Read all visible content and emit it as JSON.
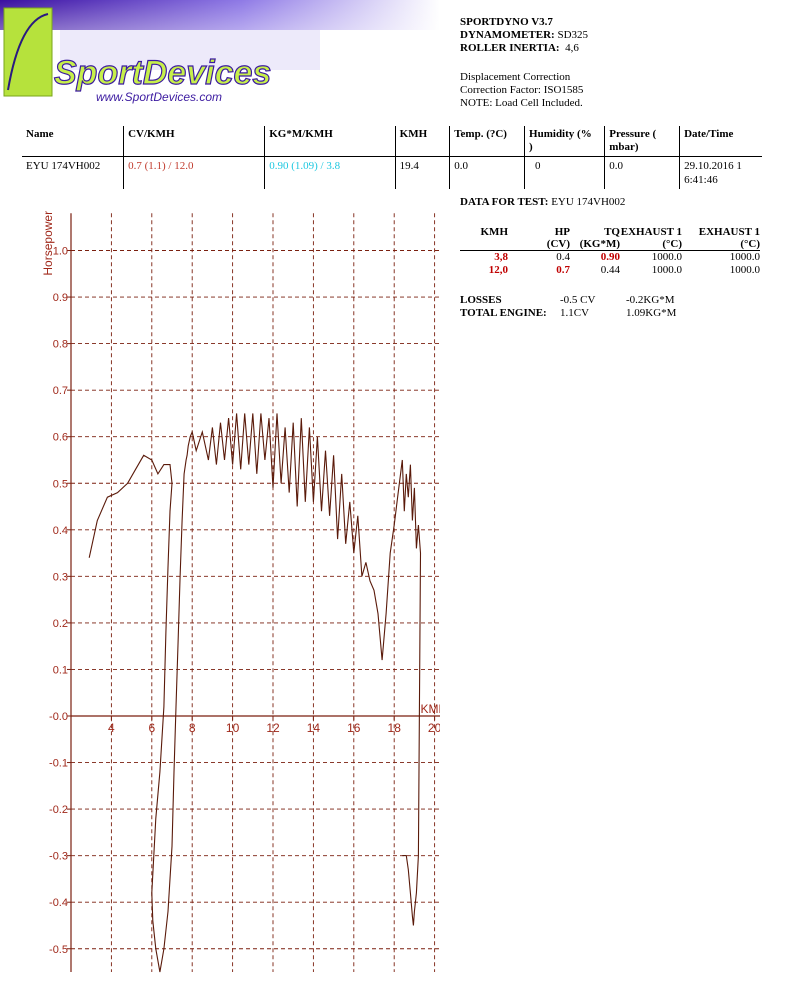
{
  "header": {
    "logo_text": "SportDevices",
    "logo_url": "www.SportDevices.com",
    "lines": [
      {
        "label": "SPORTDYNO V3.7",
        "value": ""
      },
      {
        "label": "DYNAMOMETER:",
        "value": "SD325"
      },
      {
        "label": "ROLLER INERTIA:",
        "value": "4,6"
      }
    ],
    "notes": [
      "Displacement Correction",
      "Correction Factor: ISO1585",
      "NOTE: Load Cell Included."
    ]
  },
  "info_table": {
    "headers": [
      "Name",
      "CV/KMH",
      "KG*M/KMH",
      "KMH",
      "Temp. (?C)",
      "Humidity (%\n)",
      "Pressure (\nmbar)",
      "Date/Time"
    ],
    "row": {
      "name": "EYU  174VH002",
      "cv_kmh": "0.7 (1.1) / 12.0",
      "kgm_kmh": "0.90 (1.09) / 3.8",
      "kmh": "19.4",
      "temp": "0.0",
      "humidity": "0",
      "pressure": "0.0",
      "datetime": "29.10.2016 1\n6:41:46"
    }
  },
  "test": {
    "label": "DATA FOR TEST:",
    "name": "EYU  174VH002",
    "headers_top": [
      "KMH",
      "HP",
      "TQ",
      "EXHAUST 1",
      "EXHAUST 1"
    ],
    "headers_bottom": [
      "",
      "(CV)",
      "(KG*M)",
      "(°C)",
      "(°C)"
    ],
    "rows": [
      {
        "kmh": "3,8",
        "hp": "0.4",
        "tq": "0.90",
        "ex1": "1000.0",
        "ex2": "1000.0"
      },
      {
        "kmh": "12,0",
        "hp": "0.7",
        "tq": "0.44",
        "ex1": "1000.0",
        "ex2": "1000.0"
      }
    ],
    "losses_label": "LOSSES",
    "losses_cv": "-0.5 CV",
    "losses_kgm": "-0.2KG*M",
    "total_label": "TOTAL ENGINE:",
    "total_cv": "1.1CV",
    "total_kgm": "1.09KG*M"
  },
  "colors": {
    "curve": "#5a1a0a",
    "grid": "#7a1f0f",
    "axis_text": "#a0281a",
    "red": "#c0392b",
    "cyan": "#1fc8e0",
    "logo_green": "#b6e23c",
    "logo_purple": "#5a2ab0"
  },
  "chart_data": {
    "type": "line",
    "ylabel": "Horsepower",
    "xlabel": "KMH",
    "xlim": [
      2.0,
      21.0
    ],
    "ylim": [
      -0.55,
      1.08
    ],
    "xticks": [
      4,
      6,
      8,
      10,
      12,
      14,
      16,
      18,
      20
    ],
    "yticks": [
      1.0,
      0.9,
      0.8,
      0.7,
      0.6,
      0.5,
      0.4,
      0.3,
      0.2,
      0.1,
      -0.0,
      -0.1,
      -0.2,
      -0.3,
      -0.4,
      -0.5
    ],
    "ytick_labels": [
      "1.0",
      "0.9",
      "0.8",
      "0.7",
      "0.6",
      "0.5",
      "0.4",
      "0.3",
      "0.2",
      "0.1",
      "-0.0",
      "-0.1",
      "-0.2",
      "-0.3",
      "-0.4",
      "-0.5"
    ],
    "grid": true,
    "series": [
      {
        "x": [
          2.9,
          3.3,
          3.8,
          4.3,
          4.8,
          5.2,
          5.6,
          6.0,
          6.3,
          6.6,
          6.9,
          7.0,
          6.9,
          6.8,
          6.7,
          6.6,
          6.4,
          6.2,
          6.1,
          6.0,
          6.05,
          6.2,
          6.4,
          6.6,
          6.8,
          7.0,
          7.1,
          7.2,
          7.3,
          7.4,
          7.5,
          7.6,
          7.7,
          7.75,
          7.8,
          7.9,
          8.0,
          8.2,
          8.5,
          8.8,
          9.0,
          9.2,
          9.4,
          9.6,
          9.8,
          10.0,
          10.2,
          10.4,
          10.6,
          10.8,
          11.0,
          11.2,
          11.4,
          11.6,
          11.8,
          12.0,
          12.2,
          12.4,
          12.6,
          12.8,
          13.0,
          13.2,
          13.4,
          13.6,
          13.8,
          14.0,
          14.2,
          14.4,
          14.6,
          14.8,
          15.0,
          15.2,
          15.4,
          15.6,
          15.8,
          16.0,
          16.2,
          16.4,
          16.6,
          16.8,
          17.0,
          17.2,
          17.4,
          17.6,
          17.8,
          18.0,
          18.2,
          18.4,
          18.5,
          18.6,
          18.7,
          18.8,
          18.9,
          19.0,
          19.1,
          19.2,
          19.3,
          19.2,
          19.1,
          19.0,
          18.95,
          18.9,
          18.8,
          18.7,
          18.6,
          18.5,
          18.4
        ],
        "y": [
          0.34,
          0.42,
          0.47,
          0.48,
          0.5,
          0.53,
          0.56,
          0.55,
          0.52,
          0.54,
          0.54,
          0.5,
          0.44,
          0.32,
          0.18,
          0.02,
          -0.12,
          -0.22,
          -0.3,
          -0.38,
          -0.44,
          -0.5,
          -0.55,
          -0.5,
          -0.42,
          -0.28,
          -0.12,
          0.02,
          0.16,
          0.3,
          0.42,
          0.52,
          0.55,
          0.56,
          0.58,
          0.6,
          0.61,
          0.57,
          0.61,
          0.55,
          0.62,
          0.54,
          0.63,
          0.55,
          0.64,
          0.54,
          0.65,
          0.53,
          0.65,
          0.54,
          0.65,
          0.52,
          0.65,
          0.55,
          0.64,
          0.49,
          0.65,
          0.5,
          0.62,
          0.48,
          0.63,
          0.45,
          0.64,
          0.46,
          0.62,
          0.46,
          0.6,
          0.44,
          0.57,
          0.43,
          0.56,
          0.38,
          0.52,
          0.37,
          0.46,
          0.35,
          0.43,
          0.3,
          0.33,
          0.29,
          0.27,
          0.22,
          0.12,
          0.22,
          0.35,
          0.41,
          0.48,
          0.55,
          0.44,
          0.52,
          0.47,
          0.54,
          0.42,
          0.49,
          0.36,
          0.41,
          0.35,
          -0.3,
          -0.38,
          -0.42,
          -0.45,
          -0.43,
          -0.38,
          -0.33,
          -0.3,
          -0.3,
          -0.3
        ]
      }
    ]
  }
}
